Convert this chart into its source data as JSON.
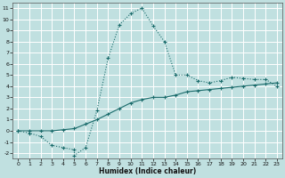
{
  "xlabel": "Humidex (Indice chaleur)",
  "bg_color": "#c0e0e0",
  "grid_color": "#ffffff",
  "line_color": "#1a6b6b",
  "xlim": [
    -0.5,
    23.5
  ],
  "ylim": [
    -2.5,
    11.5
  ],
  "xticks": [
    0,
    1,
    2,
    3,
    4,
    5,
    6,
    7,
    8,
    9,
    10,
    11,
    12,
    13,
    14,
    15,
    16,
    17,
    18,
    19,
    20,
    21,
    22,
    23
  ],
  "yticks": [
    -2,
    -1,
    0,
    1,
    2,
    3,
    4,
    5,
    6,
    7,
    8,
    9,
    10,
    11
  ],
  "curve1_x": [
    0,
    1,
    2,
    3,
    4,
    5,
    5,
    6,
    7,
    8,
    9,
    10,
    11,
    12,
    13,
    14,
    15,
    16,
    17,
    18,
    19,
    20,
    21,
    22,
    23
  ],
  "curve1_y": [
    0,
    -0.2,
    -0.5,
    -1.3,
    -1.5,
    -1.7,
    -2.2,
    -1.5,
    1.8,
    6.5,
    9.5,
    10.5,
    11.0,
    9.4,
    8.0,
    5.0,
    5.0,
    4.5,
    4.3,
    4.5,
    4.8,
    4.7,
    4.6,
    4.6,
    4.0
  ],
  "curve2_x": [
    0,
    1,
    2,
    3,
    4,
    5,
    6,
    7,
    8,
    9,
    10,
    11,
    12,
    13,
    14,
    15,
    16,
    17,
    18,
    19,
    20,
    21,
    22,
    23
  ],
  "curve2_y": [
    0,
    0,
    0,
    0,
    0.1,
    0.2,
    0.6,
    1.0,
    1.5,
    2.0,
    2.5,
    2.8,
    3.0,
    3.0,
    3.2,
    3.5,
    3.6,
    3.7,
    3.8,
    3.9,
    4.0,
    4.1,
    4.2,
    4.3
  ]
}
